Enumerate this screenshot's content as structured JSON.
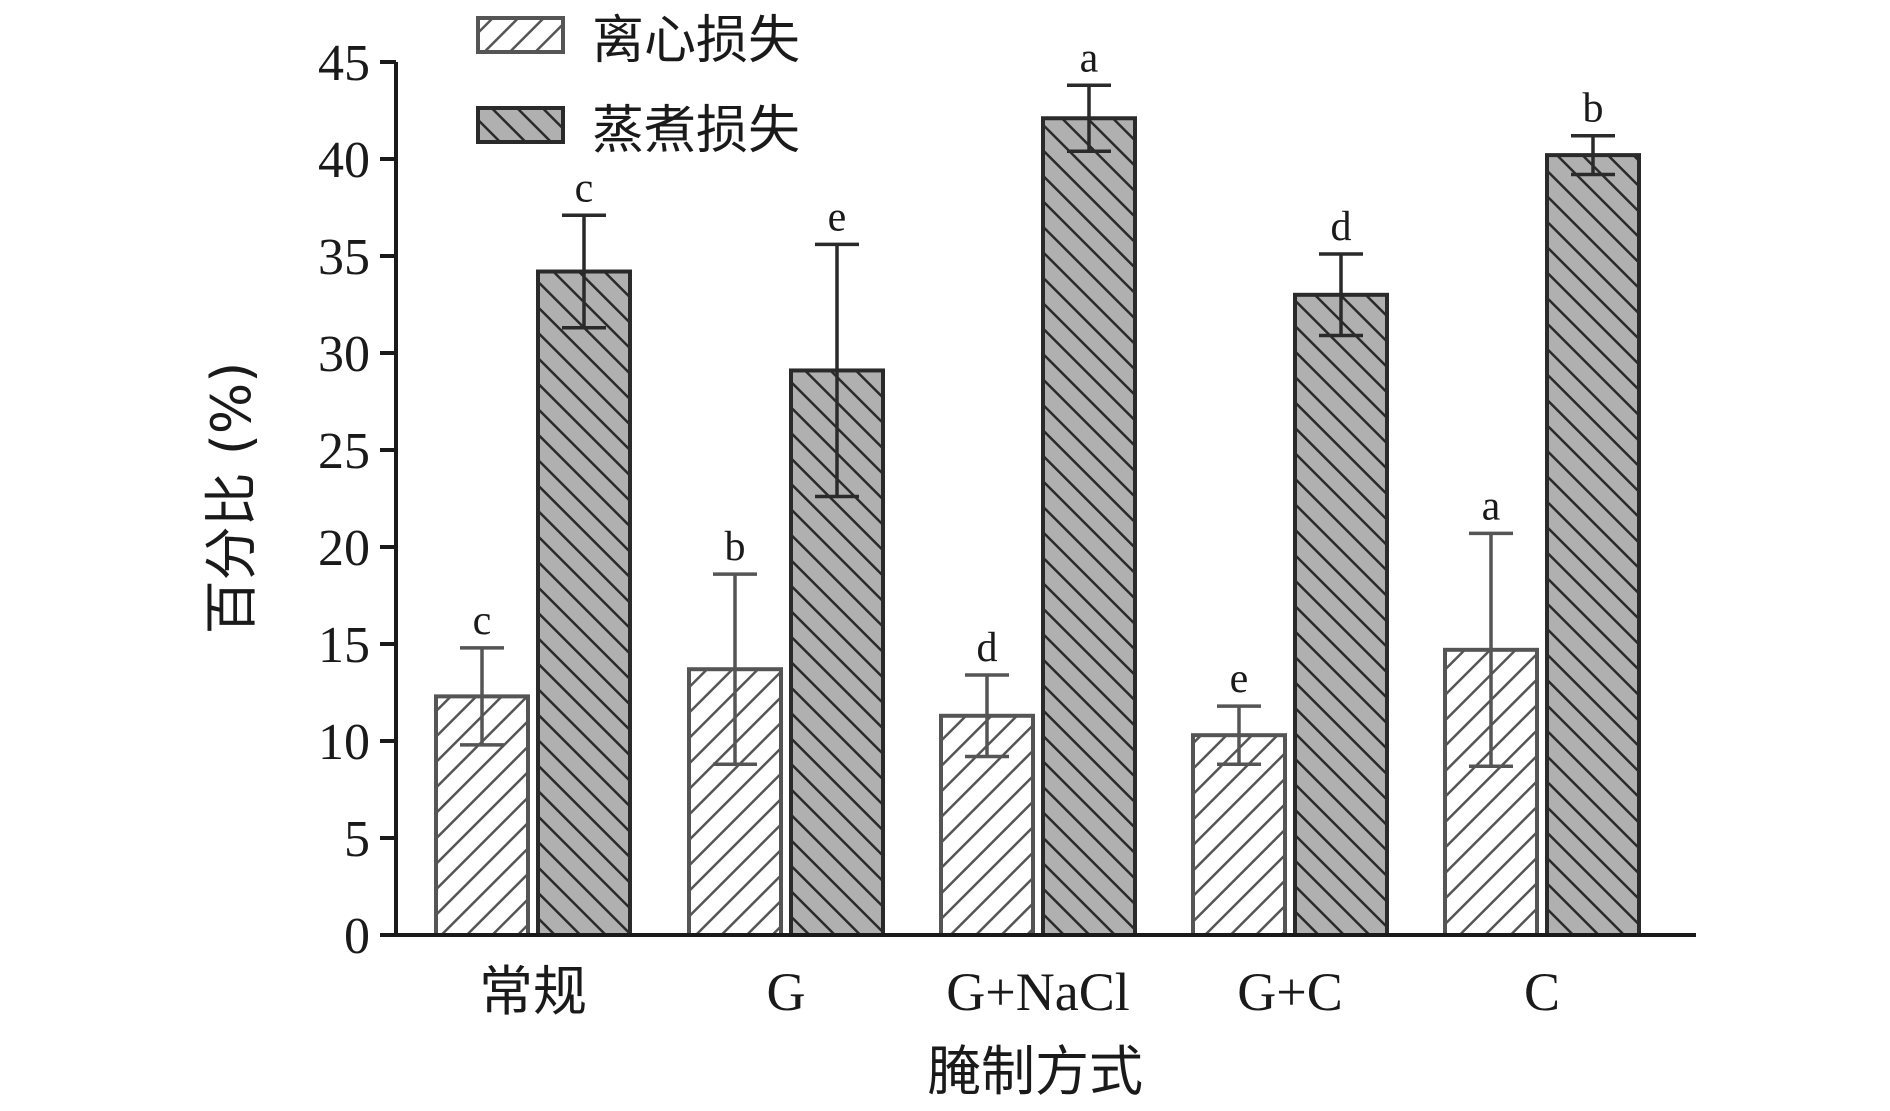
{
  "chart_data": {
    "type": "bar",
    "categories": [
      "常规",
      "G",
      "G+NaCl",
      "G+C",
      "C"
    ],
    "series": [
      {
        "name": "离心损失",
        "values": [
          12.3,
          13.7,
          11.3,
          10.3,
          14.7
        ],
        "errors": [
          2.5,
          4.9,
          2.1,
          1.5,
          6.0
        ],
        "significance": [
          "c",
          "b",
          "d",
          "e",
          "a"
        ]
      },
      {
        "name": "蒸煮损失",
        "values": [
          34.2,
          29.1,
          42.1,
          33.0,
          40.2
        ],
        "errors": [
          2.9,
          6.5,
          1.7,
          2.1,
          1.0
        ],
        "significance": [
          "c",
          "e",
          "a",
          "d",
          "b"
        ]
      }
    ],
    "xlabel": "腌制方式",
    "ylabel": "百分比 (%)",
    "ylim": [
      0,
      45
    ],
    "yticks": [
      0,
      5,
      10,
      15,
      20,
      25,
      30,
      35,
      40,
      45
    ],
    "grid": false,
    "legend_position": "top-left",
    "colors": {
      "series1_fill": "#ffffff",
      "series1_stroke": "#555555",
      "series2_fill": "#b0b0b0",
      "series2_stroke": "#2a2a2a",
      "axis": "#1a1a1a"
    }
  }
}
